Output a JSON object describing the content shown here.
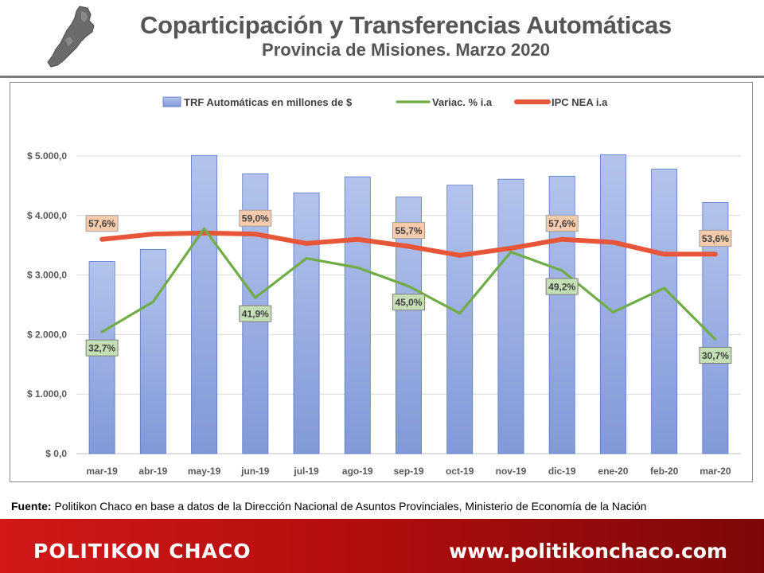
{
  "header": {
    "title": "Coparticipación y Transferencias Automáticas",
    "subtitle": "Provincia de Misiones. Marzo 2020",
    "logo_icon": "misiones-province-map-icon"
  },
  "chart_data": {
    "type": "bar+line",
    "categories": [
      "mar-19",
      "abr-19",
      "may-19",
      "jun-19",
      "jul-19",
      "ago-19",
      "sep-19",
      "oct-19",
      "nov-19",
      "dic-19",
      "ene-20",
      "feb-20",
      "mar-20"
    ],
    "series": [
      {
        "name": "TRF Automáticas en millones de $",
        "type": "bar",
        "axis": "left",
        "color": "#8da4dc",
        "values": [
          3230,
          3430,
          5010,
          4700,
          4380,
          4650,
          4310,
          4510,
          4610,
          4660,
          5020,
          4780,
          4220
        ]
      },
      {
        "name": "Variac. % i.a",
        "type": "line",
        "axis": "right",
        "color": "#70ad47",
        "values": [
          32.7,
          40.8,
          60.5,
          41.9,
          52.5,
          50.0,
          45.0,
          37.7,
          54.2,
          49.2,
          38.0,
          44.5,
          30.7
        ],
        "labels": {
          "0": "32,7%",
          "3": "41,9%",
          "6": "45,0%",
          "9": "49,2%",
          "12": "30,7%"
        }
      },
      {
        "name": "IPC NEA i.a",
        "type": "line",
        "axis": "right",
        "color": "#e8563a",
        "values": [
          57.6,
          59.0,
          59.3,
          59.0,
          56.5,
          57.6,
          55.7,
          53.3,
          55.2,
          57.6,
          56.8,
          53.6,
          53.6
        ],
        "labels": {
          "0": "57,6%",
          "3": "59,0%",
          "6": "55,7%",
          "9": "57,6%",
          "12": "53,6%"
        }
      }
    ],
    "y_axis": {
      "ticks": [
        "$ 0,0",
        "$ 1.000,0",
        "$ 2.000,0",
        "$ 3.000,0",
        "$ 4.000,0",
        "$ 5.000,0"
      ],
      "range": [
        0,
        5000
      ]
    },
    "grid": true,
    "legend": "top"
  },
  "source": {
    "label": "Fuente:",
    "text": " Politikon Chaco en base a datos de la Dirección Nacional de Asuntos Provinciales, Ministerio de Economía de la Nación"
  },
  "footer": {
    "brand": "POLITIKON CHACO",
    "url": "www.politikonchaco.com"
  }
}
